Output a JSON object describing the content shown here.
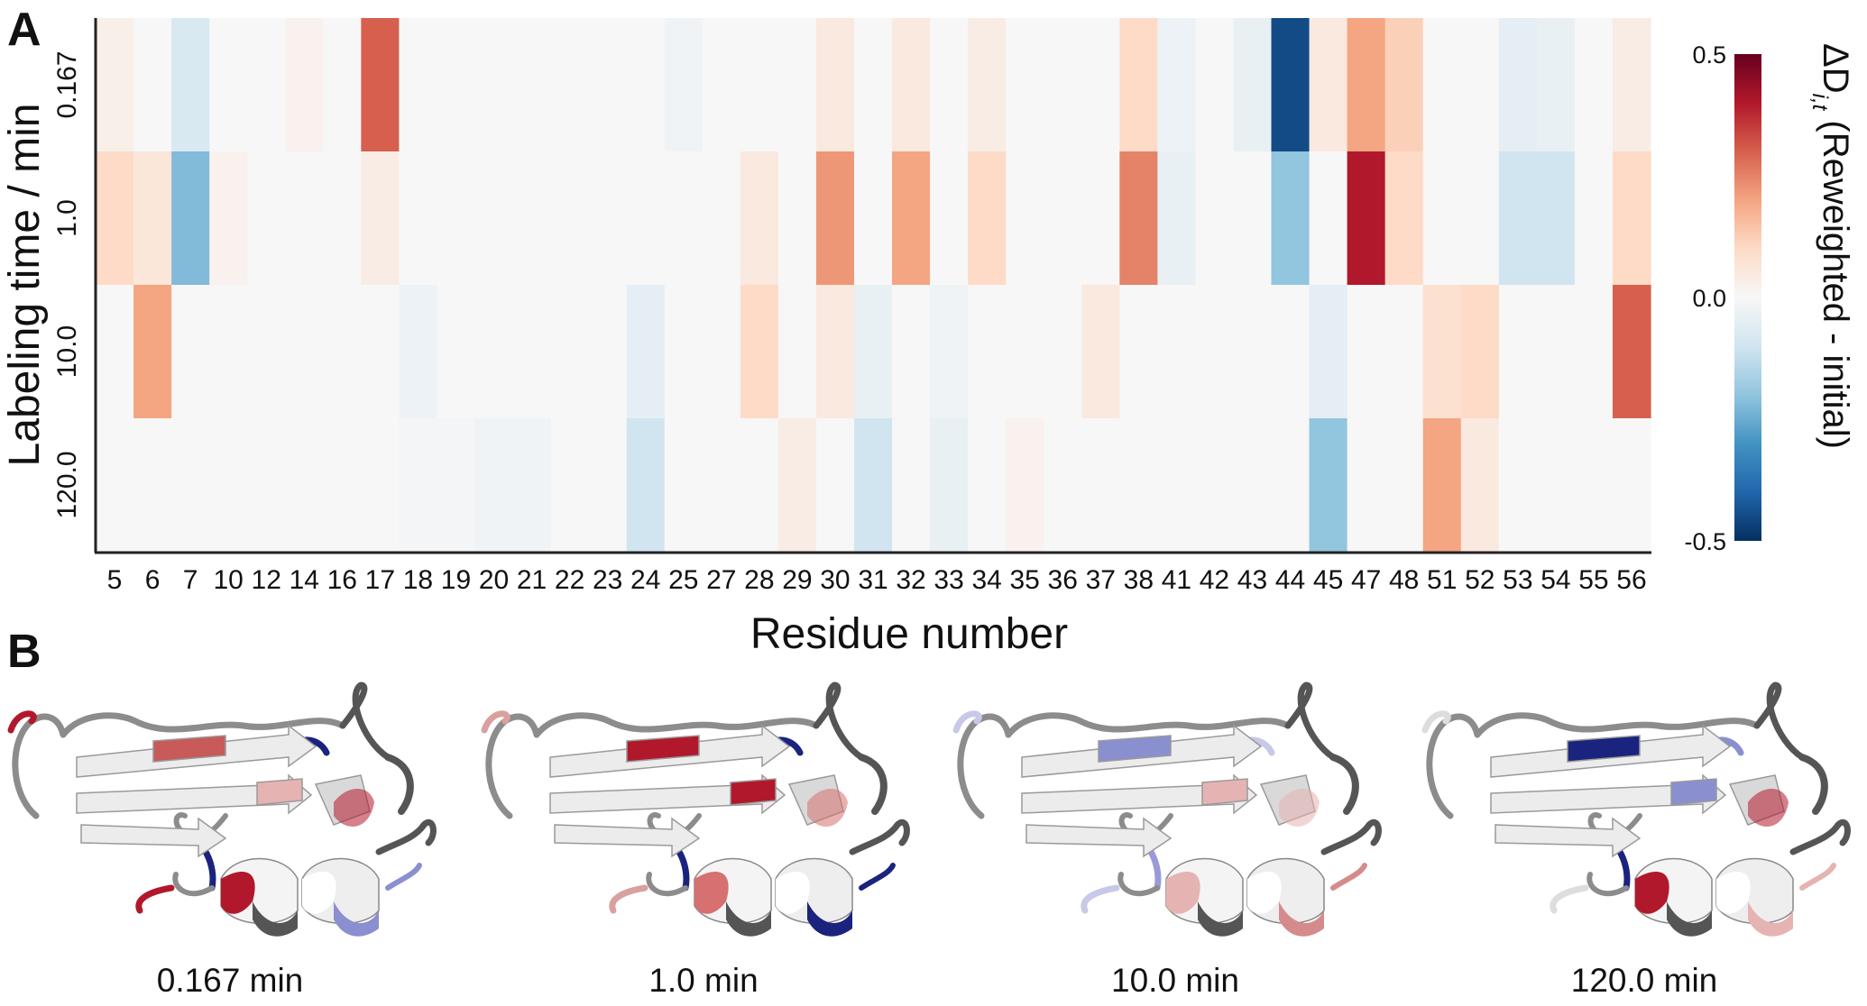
{
  "panels": {
    "a_label": "A",
    "b_label": "B"
  },
  "chart_data": {
    "type": "heatmap",
    "xlabel": "Residue number",
    "ylabel": "Labeling time / min",
    "x_categories": [
      "5",
      "6",
      "7",
      "10",
      "12",
      "14",
      "16",
      "17",
      "18",
      "19",
      "20",
      "21",
      "22",
      "23",
      "24",
      "25",
      "27",
      "28",
      "29",
      "30",
      "31",
      "32",
      "33",
      "34",
      "35",
      "36",
      "37",
      "38",
      "41",
      "42",
      "43",
      "44",
      "45",
      "47",
      "48",
      "51",
      "52",
      "53",
      "54",
      "55",
      "56"
    ],
    "y_categories": [
      "0.167",
      "1.0",
      "10.0",
      "120.0"
    ],
    "values": [
      [
        0.03,
        0.0,
        -0.08,
        0.0,
        0.0,
        0.02,
        0.0,
        0.3,
        0.0,
        0.0,
        0.0,
        0.0,
        0.0,
        0.0,
        0.0,
        -0.02,
        0.0,
        0.0,
        0.0,
        0.05,
        0.0,
        0.05,
        0.0,
        0.04,
        0.0,
        0.0,
        0.0,
        0.1,
        -0.03,
        0.0,
        -0.04,
        -0.45,
        0.05,
        0.2,
        0.12,
        0.0,
        0.0,
        -0.05,
        -0.04,
        0.0,
        0.04
      ],
      [
        0.1,
        0.06,
        -0.22,
        0.02,
        0.0,
        0.0,
        0.0,
        0.04,
        0.0,
        0.0,
        0.0,
        0.0,
        0.0,
        0.0,
        0.0,
        0.0,
        0.0,
        0.05,
        0.0,
        0.22,
        0.0,
        0.2,
        0.0,
        0.1,
        0.0,
        0.0,
        0.0,
        0.25,
        -0.04,
        0.0,
        0.0,
        -0.2,
        0.0,
        0.4,
        0.1,
        0.0,
        0.0,
        -0.1,
        -0.1,
        0.0,
        0.1
      ],
      [
        0.0,
        0.2,
        0.0,
        0.0,
        0.0,
        0.0,
        0.0,
        0.0,
        -0.03,
        0.0,
        0.0,
        0.0,
        0.0,
        0.0,
        -0.05,
        0.0,
        0.0,
        0.1,
        0.0,
        0.05,
        -0.04,
        0.0,
        -0.02,
        0.0,
        0.0,
        0.0,
        0.05,
        0.0,
        0.0,
        0.0,
        0.0,
        0.0,
        -0.05,
        0.0,
        0.0,
        0.08,
        0.1,
        0.0,
        0.0,
        0.0,
        0.3
      ],
      [
        0.0,
        0.0,
        0.0,
        0.0,
        0.0,
        0.0,
        0.0,
        0.0,
        -0.01,
        -0.01,
        -0.02,
        -0.02,
        0.0,
        0.0,
        -0.1,
        0.0,
        0.0,
        0.0,
        0.04,
        0.0,
        -0.1,
        0.0,
        -0.04,
        0.0,
        0.02,
        0.0,
        0.0,
        0.0,
        0.0,
        0.0,
        0.0,
        0.0,
        -0.2,
        0.0,
        0.0,
        0.2,
        0.05,
        0.0,
        0.0,
        0.0,
        0.0
      ]
    ],
    "colorbar": {
      "title_prefix": "ΔD",
      "title_subscript": "i,t",
      "title_suffix": " (Reweighted - initial)",
      "vmin": -0.5,
      "vmax": 0.5,
      "ticks": [
        "0.5",
        "0.0",
        "-0.5"
      ],
      "colormap": [
        "#053061",
        "#2166ac",
        "#4393c3",
        "#92c5de",
        "#d1e5f0",
        "#f7f7f7",
        "#fddbc7",
        "#f4a582",
        "#d6604d",
        "#b2182b",
        "#67001f"
      ]
    }
  },
  "structures": {
    "captions": [
      "0.167 min",
      "1.0 min",
      "10.0 min",
      "120.0 min"
    ],
    "colors": {
      "base": "#ececec",
      "shade": "#8c8c8c",
      "dark": "#555555",
      "red": "#b2182b",
      "blue": "#1a237e"
    }
  }
}
